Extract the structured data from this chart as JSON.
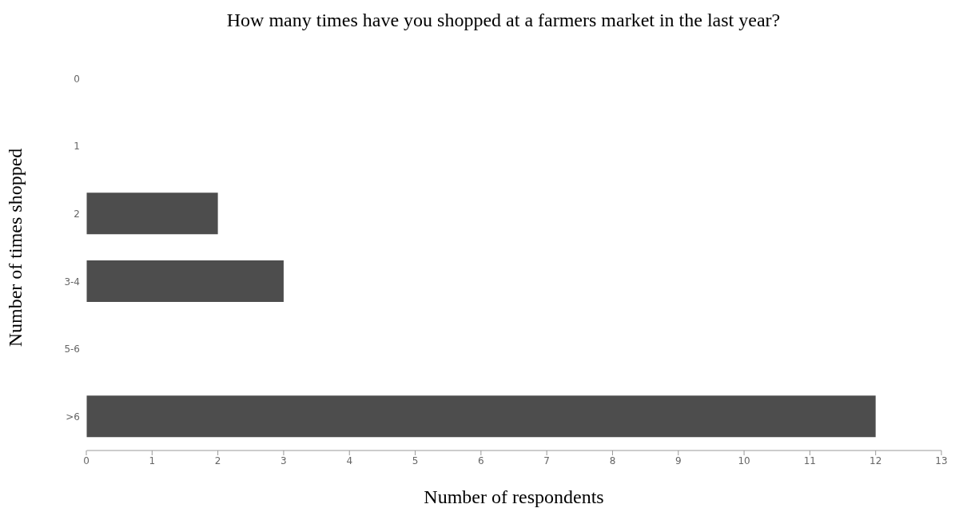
{
  "chart_data": {
    "type": "bar",
    "orientation": "horizontal",
    "title": "How many times have you shopped at a farmers market in the last year?",
    "xlabel": "Number of respondents",
    "ylabel": "Number of times shopped",
    "categories": [
      "0",
      "1",
      "2",
      "3-4",
      "5-6",
      ">6"
    ],
    "values": [
      0,
      0,
      2,
      3,
      0,
      12
    ],
    "color": "#4d4d4d",
    "xlim": [
      0,
      13
    ],
    "xticks": [
      0,
      1,
      2,
      3,
      4,
      5,
      6,
      7,
      8,
      9,
      10,
      11,
      12,
      13
    ],
    "grid": false
  }
}
